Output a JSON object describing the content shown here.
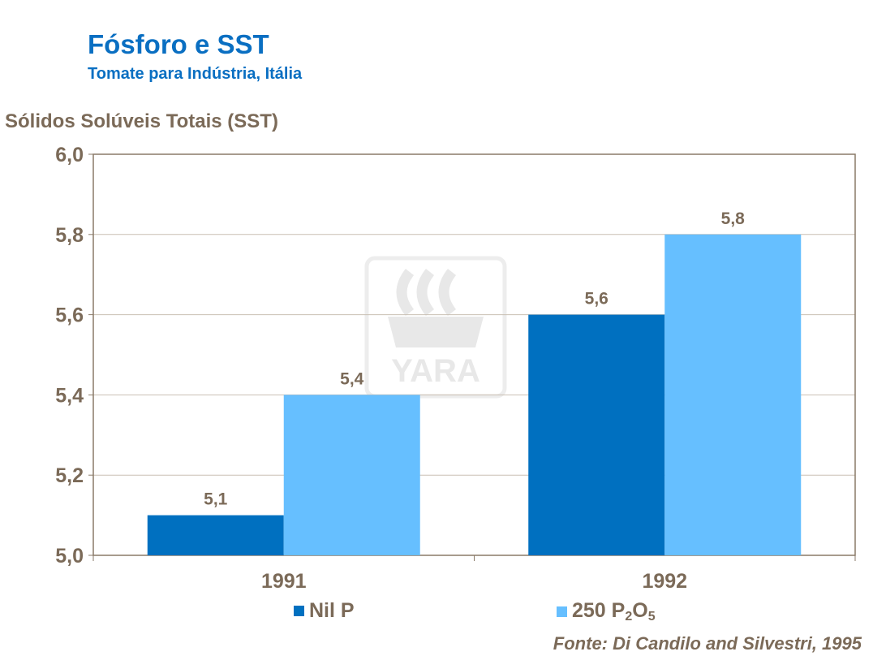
{
  "title": "Fósforo e SST",
  "subtitle": "Tomate para Indústria, Itália",
  "source": "Fonte: Di Candilo and Silvestri, 1995",
  "logo_text": "YARA",
  "chart_data": {
    "type": "bar",
    "ylabel": "Sólidos Solúveis Totais (SST)",
    "xlabel": "",
    "categories": [
      "1991",
      "1992"
    ],
    "series": [
      {
        "name": "Nil P",
        "values": [
          5.1,
          5.6
        ],
        "color": "#0070c0",
        "label": [
          "5,1",
          "5,6"
        ]
      },
      {
        "name": "250 P2O5",
        "name_parts": {
          "base": "250 P",
          "sub1": "2",
          "mid": "O",
          "sub2": "5"
        },
        "values": [
          5.4,
          5.8
        ],
        "color": "#66bfff",
        "label": [
          "5,4",
          "5,8"
        ]
      }
    ],
    "ylim": [
      5.0,
      6.0
    ],
    "yticks": [
      "5,0",
      "5,2",
      "5,4",
      "5,6",
      "5,8",
      "6,0"
    ],
    "ytick_values": [
      5.0,
      5.2,
      5.4,
      5.6,
      5.8,
      6.0
    ],
    "grid": true,
    "legend": "bottom"
  }
}
